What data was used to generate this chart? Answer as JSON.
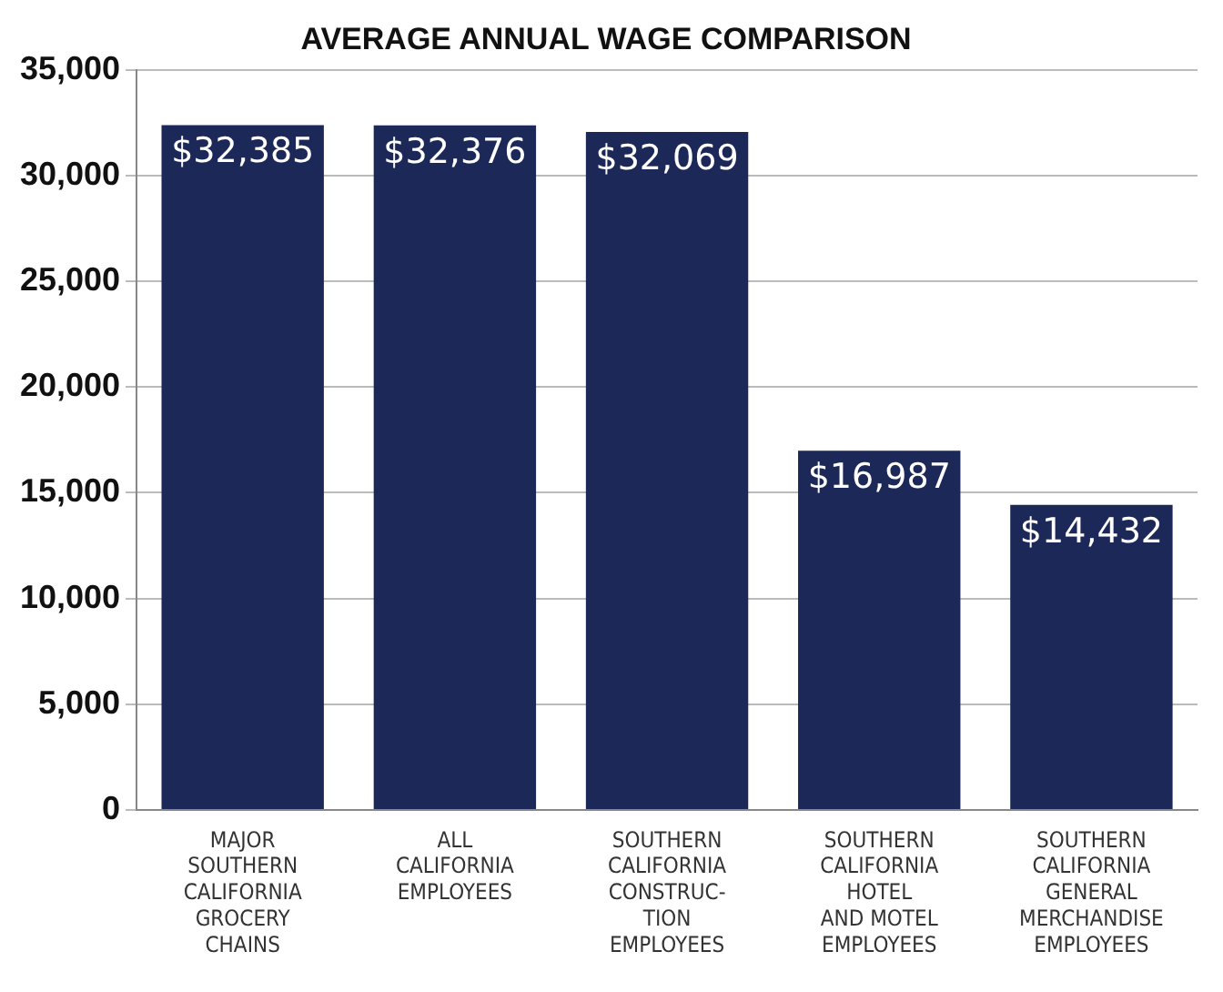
{
  "chart_data": {
    "type": "bar",
    "title": "AVERAGE ANNUAL WAGE COMPARISON",
    "categories": [
      "MAJOR\nSOUTHERN\nCALIFORNIA\nGROCERY\nCHAINS",
      "ALL\nCALIFORNIA\nEMPLOYEES",
      "SOUTHERN\nCALIFORNIA\nCONSTRUC-\nTION\nEMPLOYEES",
      "SOUTHERN\nCALIFORNIA\nHOTEL\nAND MOTEL\nEMPLOYEES",
      "SOUTHERN\nCALIFORNIA\nGENERAL\nMERCHANDISE\nEMPLOYEES"
    ],
    "values": [
      32385,
      32376,
      32069,
      16987,
      14432
    ],
    "color": "#1b2858",
    "value_labels": [
      "$32,385",
      "$32,376",
      "$32,069",
      "$16,987",
      "$14,432"
    ],
    "ylim": [
      0,
      35000
    ],
    "yticks": [
      0,
      {
        "value": 5000,
        "label": "5,000"
      },
      {
        "value": 10000,
        "label": "10,000"
      },
      {
        "value": 15000,
        "label": "15,000"
      },
      {
        "value": 20000,
        "label": "20,000"
      },
      {
        "value": 25000,
        "label": "25,000"
      },
      {
        "value": 30000,
        "label": "30,000"
      },
      {
        "value": 35000,
        "label": "35,000"
      }
    ],
    "grid": "y"
  }
}
